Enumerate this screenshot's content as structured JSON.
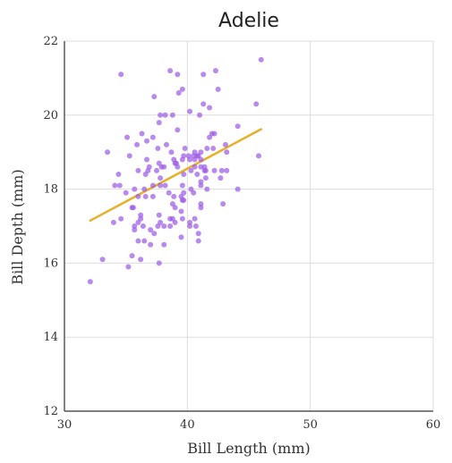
{
  "chart_data": {
    "type": "scatter",
    "title": "Adelie",
    "xlabel": "Bill Length (mm)",
    "ylabel": "Bill Depth (mm)",
    "xlim": [
      30,
      60
    ],
    "ylim": [
      12,
      22
    ],
    "xticks": [
      30,
      40,
      50,
      60
    ],
    "yticks": [
      12,
      14,
      16,
      18,
      20,
      22
    ],
    "grid": true,
    "colors": {
      "points": "#9b59e6",
      "trend": "#e8b027",
      "grid": "#dddddd",
      "axis": "#333333"
    },
    "points": [
      [
        32.1,
        15.5
      ],
      [
        33.1,
        16.1
      ],
      [
        33.5,
        19.0
      ],
      [
        34.0,
        17.1
      ],
      [
        34.1,
        18.1
      ],
      [
        34.4,
        18.4
      ],
      [
        34.5,
        18.1
      ],
      [
        34.6,
        17.2
      ],
      [
        34.6,
        21.1
      ],
      [
        35.0,
        17.9
      ],
      [
        35.1,
        19.4
      ],
      [
        35.2,
        15.9
      ],
      [
        35.3,
        18.9
      ],
      [
        35.5,
        16.2
      ],
      [
        35.5,
        17.5
      ],
      [
        35.6,
        17.5
      ],
      [
        35.7,
        16.9
      ],
      [
        35.7,
        17.0
      ],
      [
        35.7,
        18.0
      ],
      [
        35.9,
        19.2
      ],
      [
        36.0,
        16.6
      ],
      [
        36.0,
        17.1
      ],
      [
        36.0,
        17.8
      ],
      [
        36.0,
        18.5
      ],
      [
        36.2,
        16.1
      ],
      [
        36.2,
        17.2
      ],
      [
        36.2,
        17.3
      ],
      [
        36.3,
        19.5
      ],
      [
        36.4,
        17.0
      ],
      [
        36.5,
        16.6
      ],
      [
        36.5,
        18.0
      ],
      [
        36.6,
        17.8
      ],
      [
        36.6,
        18.4
      ],
      [
        36.7,
        18.8
      ],
      [
        36.7,
        19.3
      ],
      [
        36.8,
        18.5
      ],
      [
        36.9,
        18.6
      ],
      [
        37.0,
        16.5
      ],
      [
        37.0,
        16.9
      ],
      [
        37.2,
        17.8
      ],
      [
        37.2,
        18.1
      ],
      [
        37.2,
        19.4
      ],
      [
        37.3,
        16.8
      ],
      [
        37.3,
        20.5
      ],
      [
        37.5,
        18.5
      ],
      [
        37.6,
        17.0
      ],
      [
        37.6,
        19.1
      ],
      [
        37.7,
        16.0
      ],
      [
        37.7,
        17.3
      ],
      [
        37.7,
        18.7
      ],
      [
        37.7,
        19.8
      ],
      [
        37.8,
        17.1
      ],
      [
        37.8,
        18.1
      ],
      [
        37.8,
        18.3
      ],
      [
        37.8,
        20.0
      ],
      [
        37.9,
        18.6
      ],
      [
        38.1,
        16.5
      ],
      [
        38.1,
        17.0
      ],
      [
        38.1,
        18.6
      ],
      [
        38.2,
        18.1
      ],
      [
        38.2,
        20.0
      ],
      [
        38.3,
        19.2
      ],
      [
        38.5,
        17.9
      ],
      [
        38.6,
        17.0
      ],
      [
        38.6,
        17.2
      ],
      [
        38.6,
        21.2
      ],
      [
        38.7,
        19.0
      ],
      [
        38.8,
        17.2
      ],
      [
        38.8,
        17.6
      ],
      [
        38.8,
        20.0
      ],
      [
        38.9,
        17.8
      ],
      [
        38.9,
        18.8
      ],
      [
        39.0,
        17.1
      ],
      [
        39.0,
        17.5
      ],
      [
        39.0,
        18.7
      ],
      [
        39.1,
        18.7
      ],
      [
        39.2,
        18.6
      ],
      [
        39.2,
        19.6
      ],
      [
        39.2,
        21.1
      ],
      [
        39.3,
        20.6
      ],
      [
        39.5,
        16.7
      ],
      [
        39.5,
        17.4
      ],
      [
        39.5,
        17.8
      ],
      [
        39.6,
        17.2
      ],
      [
        39.6,
        17.7
      ],
      [
        39.6,
        18.1
      ],
      [
        39.6,
        18.8
      ],
      [
        39.6,
        20.7
      ],
      [
        39.7,
        17.7
      ],
      [
        39.7,
        17.9
      ],
      [
        39.7,
        18.4
      ],
      [
        39.7,
        18.9
      ],
      [
        39.8,
        19.1
      ],
      [
        40.1,
        18.9
      ],
      [
        40.2,
        17.0
      ],
      [
        40.2,
        17.1
      ],
      [
        40.2,
        18.8
      ],
      [
        40.2,
        20.1
      ],
      [
        40.3,
        18.0
      ],
      [
        40.3,
        18.5
      ],
      [
        40.5,
        17.9
      ],
      [
        40.5,
        18.9
      ],
      [
        40.6,
        17.2
      ],
      [
        40.6,
        18.6
      ],
      [
        40.6,
        18.8
      ],
      [
        40.6,
        19.0
      ],
      [
        40.7,
        17.0
      ],
      [
        40.8,
        18.4
      ],
      [
        40.8,
        18.9
      ],
      [
        40.9,
        16.6
      ],
      [
        40.9,
        16.8
      ],
      [
        40.9,
        18.9
      ],
      [
        41.0,
        20.0
      ],
      [
        41.1,
        17.5
      ],
      [
        41.1,
        17.6
      ],
      [
        41.1,
        18.1
      ],
      [
        41.1,
        18.2
      ],
      [
        41.1,
        18.6
      ],
      [
        41.1,
        18.8
      ],
      [
        41.1,
        19.0
      ],
      [
        41.3,
        20.3
      ],
      [
        41.3,
        21.1
      ],
      [
        41.4,
        18.5
      ],
      [
        41.4,
        18.6
      ],
      [
        41.5,
        18.3
      ],
      [
        41.5,
        18.5
      ],
      [
        41.6,
        18.0
      ],
      [
        41.6,
        19.1
      ],
      [
        41.8,
        19.4
      ],
      [
        41.8,
        20.2
      ],
      [
        42.0,
        19.5
      ],
      [
        42.1,
        19.1
      ],
      [
        42.2,
        18.5
      ],
      [
        42.2,
        19.5
      ],
      [
        42.3,
        21.2
      ],
      [
        42.5,
        20.7
      ],
      [
        42.7,
        18.3
      ],
      [
        42.8,
        18.5
      ],
      [
        42.9,
        17.6
      ],
      [
        43.1,
        19.2
      ],
      [
        43.2,
        18.5
      ],
      [
        43.2,
        19.0
      ],
      [
        44.1,
        18.0
      ],
      [
        44.1,
        19.7
      ],
      [
        45.6,
        20.3
      ],
      [
        45.8,
        18.9
      ],
      [
        46.0,
        21.5
      ]
    ],
    "trendline": {
      "x": [
        32.1,
        46.0
      ],
      "y": [
        17.15,
        19.62
      ]
    }
  }
}
